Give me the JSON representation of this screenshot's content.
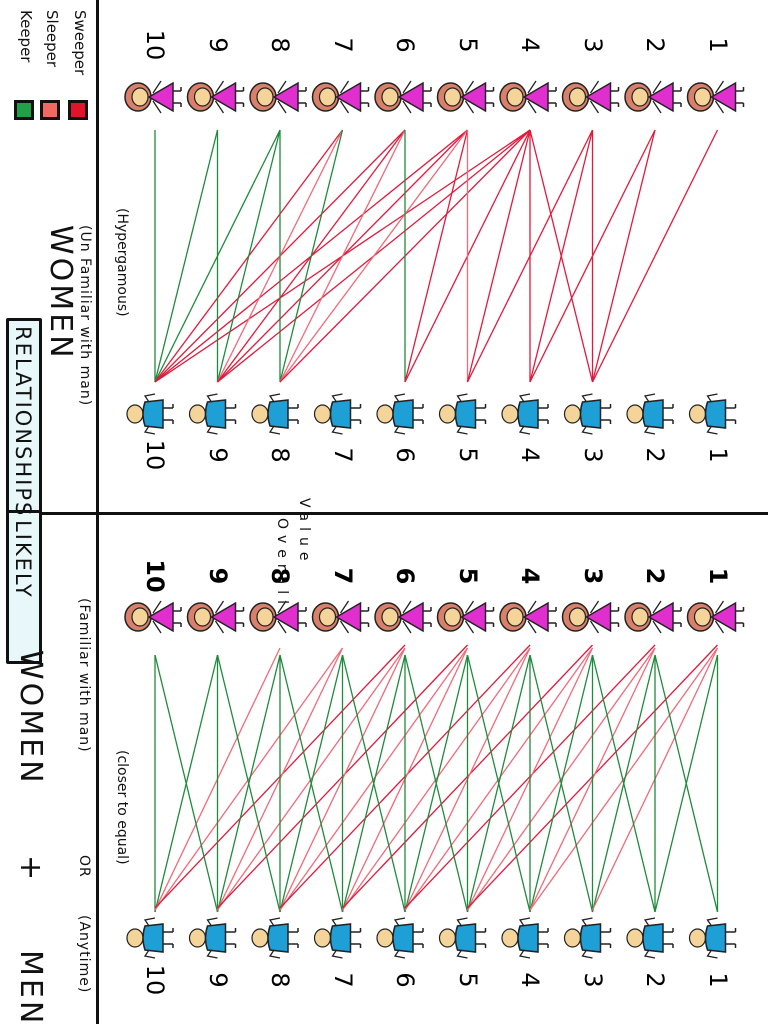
{
  "title": {
    "left": "LIKELY",
    "right": "RELATIONSHIPS"
  },
  "legend": [
    {
      "label": "Keeper",
      "color": "#1fa049"
    },
    {
      "label": "Sleeper",
      "color": "#f06a62"
    },
    {
      "label": "Sweeper",
      "color": "#e3132b"
    }
  ],
  "colors": {
    "keeper_line": "#1f8a3c",
    "sleeper_line": "#f06a7a",
    "sweeper_line": "#e01a3c",
    "man_shirt": "#1e9fd6",
    "woman_dress": "#e12fcf",
    "skin": "#f5d49a",
    "hair": "#d8806a"
  },
  "divider_label": {
    "top": "Value",
    "bottom": "Overall"
  },
  "panels": [
    {
      "id": "unfamiliar",
      "women_heading": "WOMEN",
      "women_sub": "(Un Familiar with man)",
      "note": "(Hypergamous)",
      "women_numbers": [
        "10",
        "9",
        "8",
        "7",
        "6",
        "5",
        "4",
        "3",
        "2",
        "1"
      ],
      "men_numbers": [
        "10",
        "9",
        "8",
        "7",
        "6",
        "5",
        "4",
        "3",
        "2",
        "1"
      ],
      "connections": [
        {
          "man": 10,
          "woman": 10,
          "type": "keeper"
        },
        {
          "man": 10,
          "woman": 9,
          "type": "keeper"
        },
        {
          "man": 10,
          "woman": 8,
          "type": "keeper"
        },
        {
          "man": 10,
          "woman": 7,
          "type": "sweeper"
        },
        {
          "man": 10,
          "woman": 6,
          "type": "sweeper"
        },
        {
          "man": 10,
          "woman": 5,
          "type": "sweeper"
        },
        {
          "man": 10,
          "woman": 4,
          "type": "sweeper"
        },
        {
          "man": 9,
          "woman": 9,
          "type": "keeper"
        },
        {
          "man": 9,
          "woman": 8,
          "type": "keeper"
        },
        {
          "man": 9,
          "woman": 7,
          "type": "sleeper"
        },
        {
          "man": 9,
          "woman": 6,
          "type": "sweeper"
        },
        {
          "man": 9,
          "woman": 5,
          "type": "sweeper"
        },
        {
          "man": 9,
          "woman": 4,
          "type": "sweeper"
        },
        {
          "man": 8,
          "woman": 8,
          "type": "keeper"
        },
        {
          "man": 8,
          "woman": 7,
          "type": "keeper"
        },
        {
          "man": 8,
          "woman": 6,
          "type": "sleeper"
        },
        {
          "man": 8,
          "woman": 5,
          "type": "sleeper"
        },
        {
          "man": 8,
          "woman": 4,
          "type": "sweeper"
        },
        {
          "man": 6,
          "woman": 6,
          "type": "keeper"
        },
        {
          "man": 6,
          "woman": 5,
          "type": "sweeper"
        },
        {
          "man": 6,
          "woman": 4,
          "type": "sweeper"
        },
        {
          "man": 5,
          "woman": 5,
          "type": "sleeper"
        },
        {
          "man": 5,
          "woman": 4,
          "type": "sweeper"
        },
        {
          "man": 5,
          "woman": 3,
          "type": "sweeper"
        },
        {
          "man": 4,
          "woman": 4,
          "type": "sweeper"
        },
        {
          "man": 4,
          "woman": 3,
          "type": "sweeper"
        },
        {
          "man": 4,
          "woman": 2,
          "type": "sweeper"
        },
        {
          "man": 3,
          "woman": 4,
          "type": "sweeper"
        },
        {
          "man": 3,
          "woman": 3,
          "type": "sweeper"
        },
        {
          "man": 3,
          "woman": 2,
          "type": "sweeper"
        },
        {
          "man": 3,
          "woman": 1,
          "type": "sweeper"
        }
      ]
    },
    {
      "id": "familiar",
      "men_heading": "MEN",
      "men_sub": "(Anytime)",
      "plus": "+",
      "or": "OR",
      "women_heading": "WOMEN",
      "women_sub": "(Familiar with man)",
      "note": "(closer to equal)",
      "women_numbers": [
        "10",
        "9",
        "8",
        "7",
        "6",
        "5",
        "4",
        "3",
        "2",
        "1"
      ],
      "men_numbers": [
        "10",
        "9",
        "8",
        "7",
        "6",
        "5",
        "4",
        "3",
        "2",
        "1"
      ],
      "connections_rule": "Each man connects with keeper lines to women one rank above, equal and below; sleeper/sweeper lines to women ranked 2-4 lower"
    }
  ]
}
